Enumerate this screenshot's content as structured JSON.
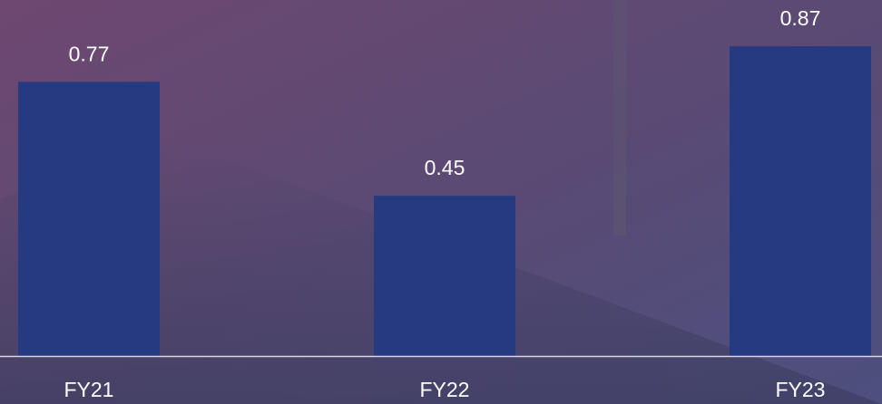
{
  "chart_data": {
    "type": "bar",
    "categories": [
      "FY21",
      "FY22",
      "FY23"
    ],
    "values": [
      0.77,
      0.45,
      0.87
    ],
    "color": "#253a80",
    "ylim": [
      0,
      1
    ]
  }
}
